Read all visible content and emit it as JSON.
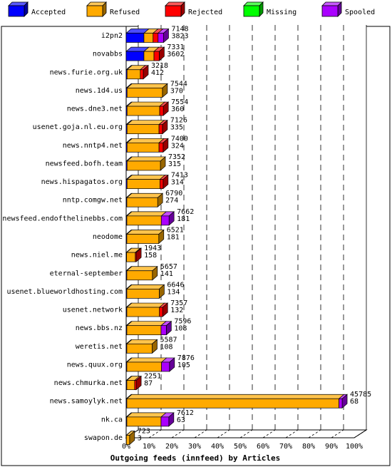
{
  "chart_data": {
    "type": "bar",
    "title": "",
    "xlabel": "Outgoing feeds (innfeed) by Articles",
    "ylabel": "",
    "orientation": "horizontal",
    "stacked": true,
    "three_d": true,
    "xlim": [
      0,
      100
    ],
    "x_ticks": [
      "0%",
      "10%",
      "20%",
      "30%",
      "40%",
      "50%",
      "60%",
      "70%",
      "80%",
      "90%",
      "100%"
    ],
    "grid": "vertical dashed",
    "legend_position": "top",
    "legend": [
      {
        "label": "Accepted",
        "color": "#0000ff"
      },
      {
        "label": "Refused",
        "color": "#ffaa00"
      },
      {
        "label": "Rejected",
        "color": "#ff0000"
      },
      {
        "label": "Missing",
        "color": "#00ff00"
      },
      {
        "label": "Spooled",
        "color": "#aa00ff"
      }
    ],
    "categories": [
      "i2pn2",
      "novabbs",
      "news.furie.org.uk",
      "news.1d4.us",
      "news.dne3.net",
      "usenet.goja.nl.eu.org",
      "news.nntp4.net",
      "newsfeed.bofh.team",
      "news.hispagatos.org",
      "nntp.comgw.net",
      "newsfeed.endofthelinebbs.com",
      "neodome",
      "news.niel.me",
      "eternal-september",
      "usenet.blueworldhosting.com",
      "usenet.network",
      "news.bbs.nz",
      "weretis.net",
      "news.quux.org",
      "news.chmurka.net",
      "news.samoylyk.net",
      "nk.ca",
      "swapon.de"
    ],
    "offered_labels": [
      "7148",
      "7331",
      "3218",
      "7544",
      "7554",
      "7126",
      "7400",
      "7352",
      "7413",
      "6790",
      "7662",
      "6521",
      "1943",
      "5657",
      "6646",
      "7357",
      "7596",
      "5587",
      "7876",
      "2251",
      "45785",
      "7612",
      "723"
    ],
    "second_labels": [
      "3823",
      "3602",
      "412",
      "370",
      "360",
      "335",
      "324",
      "315",
      "314",
      "274",
      "181",
      "181",
      "158",
      "141",
      "134",
      "132",
      "108",
      "108",
      "105",
      "87",
      "68",
      "63",
      "3"
    ],
    "series": [
      {
        "name": "Accepted",
        "values": [
          7.8,
          7.8,
          0.4,
          0.4,
          0.4,
          0.4,
          0.4,
          0.4,
          0.4,
          0.3,
          0.3,
          0.3,
          0.2,
          0.3,
          0.3,
          0.3,
          0.3,
          0.3,
          0.3,
          0.3,
          0.3,
          0.3,
          0.1
        ]
      },
      {
        "name": "Refused",
        "values": [
          4.0,
          4.4,
          5.8,
          15.5,
          14.3,
          14.0,
          14.0,
          14.6,
          14.4,
          13.5,
          15.1,
          14.0,
          3.8,
          11.2,
          14.2,
          14.3,
          15.0,
          11.1,
          15.2,
          3.4,
          93.0,
          15.0,
          1.4
        ]
      },
      {
        "name": "Rejected",
        "values": [
          2.2,
          2.3,
          1.3,
          0,
          1.6,
          1.5,
          1.8,
          0,
          1.4,
          0,
          0,
          0,
          0.4,
          0,
          0,
          1.4,
          0,
          0,
          0,
          0.7,
          0,
          0,
          0
        ]
      },
      {
        "name": "Missing",
        "values": [
          0,
          0,
          0,
          0,
          0,
          0,
          0,
          0,
          0,
          0,
          0,
          0,
          0,
          0,
          0,
          0,
          0,
          0,
          0,
          0,
          0,
          0,
          0
        ]
      },
      {
        "name": "Spooled",
        "values": [
          2.4,
          0,
          0,
          0,
          0,
          0,
          0,
          0,
          0,
          0,
          3.4,
          0,
          0,
          0,
          0,
          0,
          2.3,
          0,
          3.5,
          0,
          1.4,
          3.4,
          0
        ]
      }
    ]
  }
}
